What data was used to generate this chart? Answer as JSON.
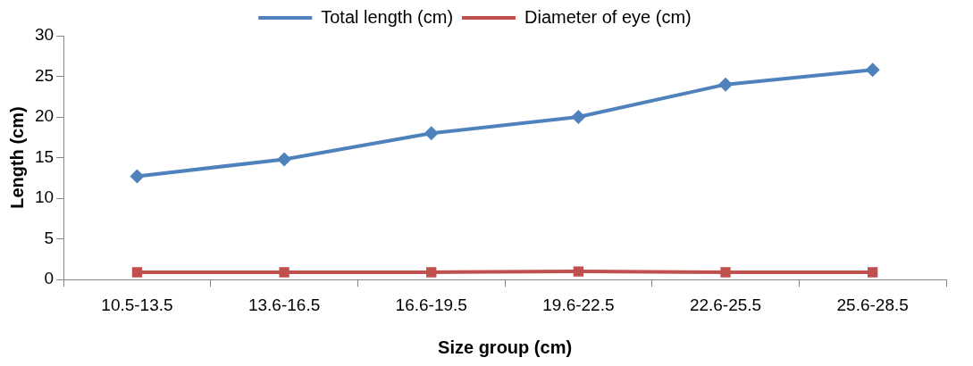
{
  "chart_data": {
    "type": "line",
    "xlabel": "Size group (cm)",
    "ylabel": "Length (cm)",
    "categories": [
      "10.5-13.5",
      "13.6-16.5",
      "16.6-19.5",
      "19.6-22.5",
      "22.6-25.5",
      "25.6-28.5"
    ],
    "series": [
      {
        "name": "Total length (cm)",
        "color": "#4f81bd",
        "marker": "diamond",
        "values": [
          12.7,
          14.8,
          18.0,
          20.0,
          24.0,
          25.8
        ]
      },
      {
        "name": "Diameter of eye (cm)",
        "color": "#c0504d",
        "marker": "square",
        "values": [
          0.9,
          0.9,
          0.9,
          1.0,
          0.9,
          0.9
        ]
      }
    ],
    "ylim": [
      0,
      30
    ],
    "yticks": [
      0,
      5,
      10,
      15,
      20,
      25,
      30
    ],
    "grid": false,
    "legend": "top",
    "line_style": "solid"
  }
}
